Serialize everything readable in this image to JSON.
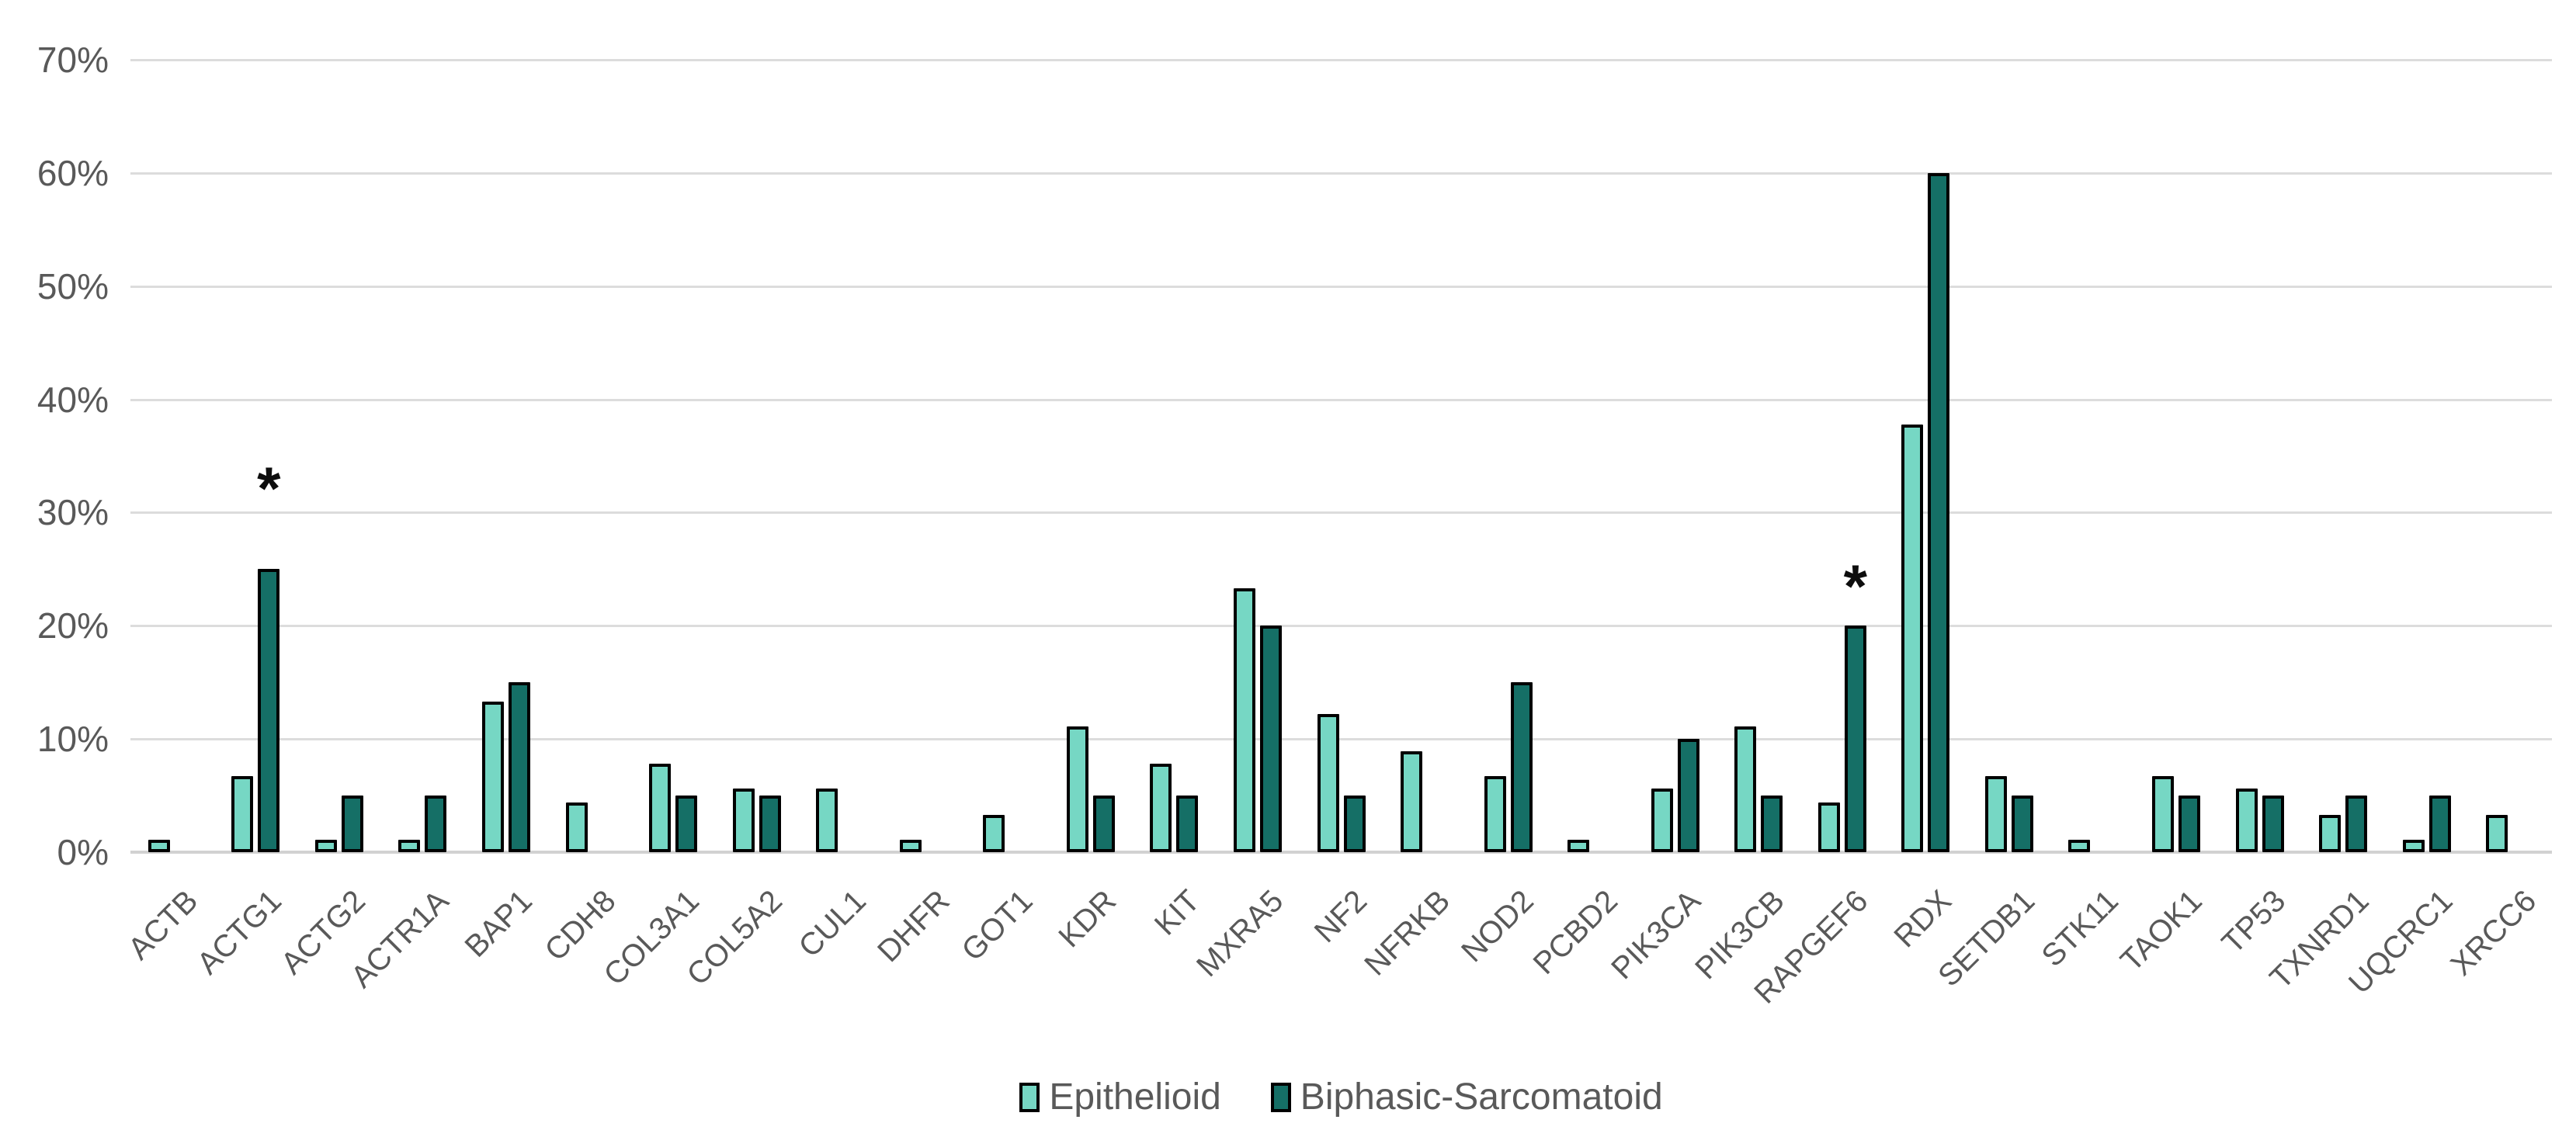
{
  "chart_data": {
    "type": "bar",
    "title": "",
    "xlabel": "",
    "ylabel": "",
    "categories": [
      "ACTB",
      "ACTG1",
      "ACTG2",
      "ACTR1A",
      "BAP1",
      "CDH8",
      "COL3A1",
      "COL5A2",
      "CUL1",
      "DHFR",
      "GOT1",
      "KDR",
      "KIT",
      "MXRA5",
      "NF2",
      "NFRKB",
      "NOD2",
      "PCBD2",
      "PIK3CA",
      "PIK3CB",
      "RAPGEF6",
      "RDX",
      "SETDB1",
      "STK11",
      "TAOK1",
      "TP53",
      "TXNRD1",
      "UQCRC1",
      "XRCC6"
    ],
    "series": [
      {
        "name": "Epithelioid",
        "color": "#76d7c4",
        "values": [
          1.1,
          6.7,
          1.1,
          1.1,
          13.3,
          4.4,
          7.8,
          5.6,
          5.6,
          1.1,
          3.3,
          11.1,
          7.8,
          23.3,
          12.2,
          8.9,
          6.7,
          1.1,
          5.6,
          11.1,
          4.4,
          37.8,
          6.7,
          1.1,
          6.7,
          5.6,
          3.3,
          1.1,
          3.3
        ]
      },
      {
        "name": "Biphasic-Sarcomatoid",
        "color": "#156f66",
        "values": [
          0,
          25,
          5,
          5,
          15,
          0,
          5,
          5,
          0,
          0,
          0,
          5,
          5,
          20,
          5,
          0,
          15,
          0,
          10,
          5,
          20,
          60,
          5,
          0,
          5,
          5,
          5,
          5,
          0
        ]
      }
    ],
    "ylim": [
      0,
      70
    ],
    "y_ticks": [
      "0%",
      "10%",
      "20%",
      "30%",
      "40%",
      "50%",
      "60%",
      "70%"
    ],
    "grid": true,
    "legend_position": "bottom",
    "bar_outline_color": "#000000",
    "gridline_color": "#dcdcdc",
    "axis_text_color": "#595959",
    "annotations": [
      {
        "symbol": "*",
        "category": "ACTG1",
        "series": "Biphasic-Sarcomatoid",
        "y_pct": 33.1
      },
      {
        "symbol": "*",
        "category": "RAPGEF6",
        "series": "Biphasic-Sarcomatoid",
        "y_pct": 24.5
      }
    ]
  },
  "legend": {
    "items": [
      {
        "label": "Epithelioid"
      },
      {
        "label": "Biphasic-Sarcomatoid"
      }
    ]
  }
}
